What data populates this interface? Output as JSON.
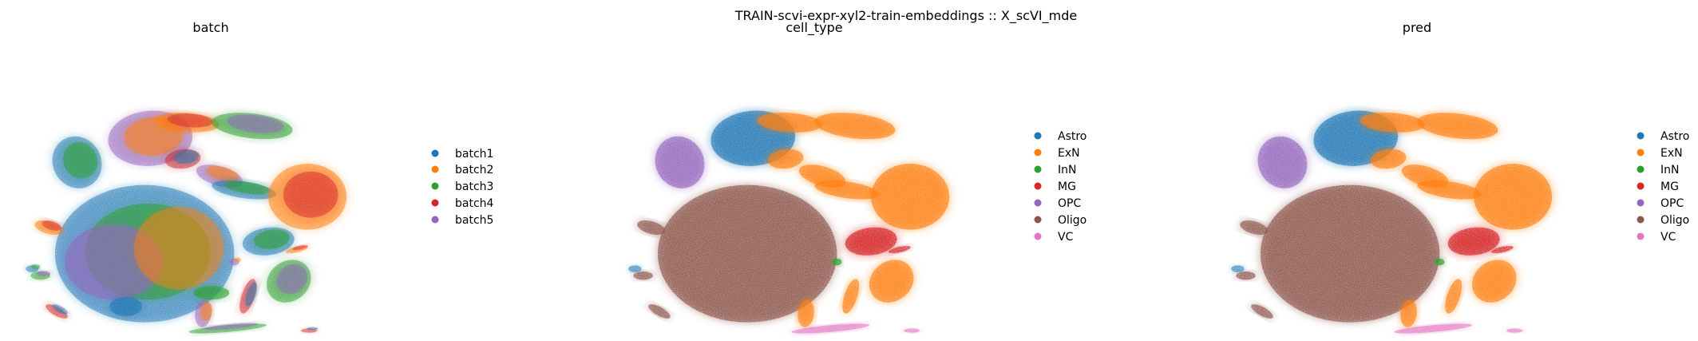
{
  "figure": {
    "suptitle": "TRAIN-scvi-expr-xyl2-train-embeddings :: X_scVI_mde"
  },
  "colors": {
    "tab_blue": "#1f77b4",
    "tab_orange": "#ff7f0e",
    "tab_green": "#2ca02c",
    "tab_red": "#d62728",
    "tab_purple": "#9467bd",
    "tab_brown": "#8c564b",
    "tab_pink": "#e377c2",
    "background": "#ffffff"
  },
  "panels": [
    {
      "title": "batch",
      "legend": [
        "batch1",
        "batch2",
        "batch3",
        "batch4",
        "batch5"
      ]
    },
    {
      "title": "cell_type",
      "legend": [
        "Astro",
        "ExN",
        "InN",
        "MG",
        "OPC",
        "Oligo",
        "VC"
      ]
    },
    {
      "title": "pred",
      "legend": [
        "Astro",
        "ExN",
        "InN",
        "MG",
        "OPC",
        "Oligo",
        "VC"
      ]
    }
  ],
  "chart_data": [
    {
      "type": "scatter",
      "title": "batch",
      "xlabel": "",
      "ylabel": "",
      "grid": false,
      "axes_visible": false,
      "legend_position": "right",
      "series": [
        {
          "name": "batch1",
          "color": "#1f77b4"
        },
        {
          "name": "batch2",
          "color": "#ff7f0e"
        },
        {
          "name": "batch3",
          "color": "#2ca02c"
        },
        {
          "name": "batch4",
          "color": "#d62728"
        },
        {
          "name": "batch5",
          "color": "#9467bd"
        }
      ]
    },
    {
      "type": "scatter",
      "title": "cell_type",
      "xlabel": "",
      "ylabel": "",
      "grid": false,
      "axes_visible": false,
      "legend_position": "right",
      "series": [
        {
          "name": "Astro",
          "color": "#1f77b4"
        },
        {
          "name": "ExN",
          "color": "#ff7f0e"
        },
        {
          "name": "InN",
          "color": "#2ca02c"
        },
        {
          "name": "MG",
          "color": "#d62728"
        },
        {
          "name": "OPC",
          "color": "#9467bd"
        },
        {
          "name": "Oligo",
          "color": "#8c564b"
        },
        {
          "name": "VC",
          "color": "#e377c2"
        }
      ]
    },
    {
      "type": "scatter",
      "title": "pred",
      "xlabel": "",
      "ylabel": "",
      "grid": false,
      "axes_visible": false,
      "legend_position": "right",
      "series": [
        {
          "name": "Astro",
          "color": "#1f77b4"
        },
        {
          "name": "ExN",
          "color": "#ff7f0e"
        },
        {
          "name": "InN",
          "color": "#2ca02c"
        },
        {
          "name": "MG",
          "color": "#d62728"
        },
        {
          "name": "OPC",
          "color": "#9467bd"
        },
        {
          "name": "Oligo",
          "color": "#8c564b"
        },
        {
          "name": "VC",
          "color": "#e377c2"
        }
      ]
    }
  ]
}
